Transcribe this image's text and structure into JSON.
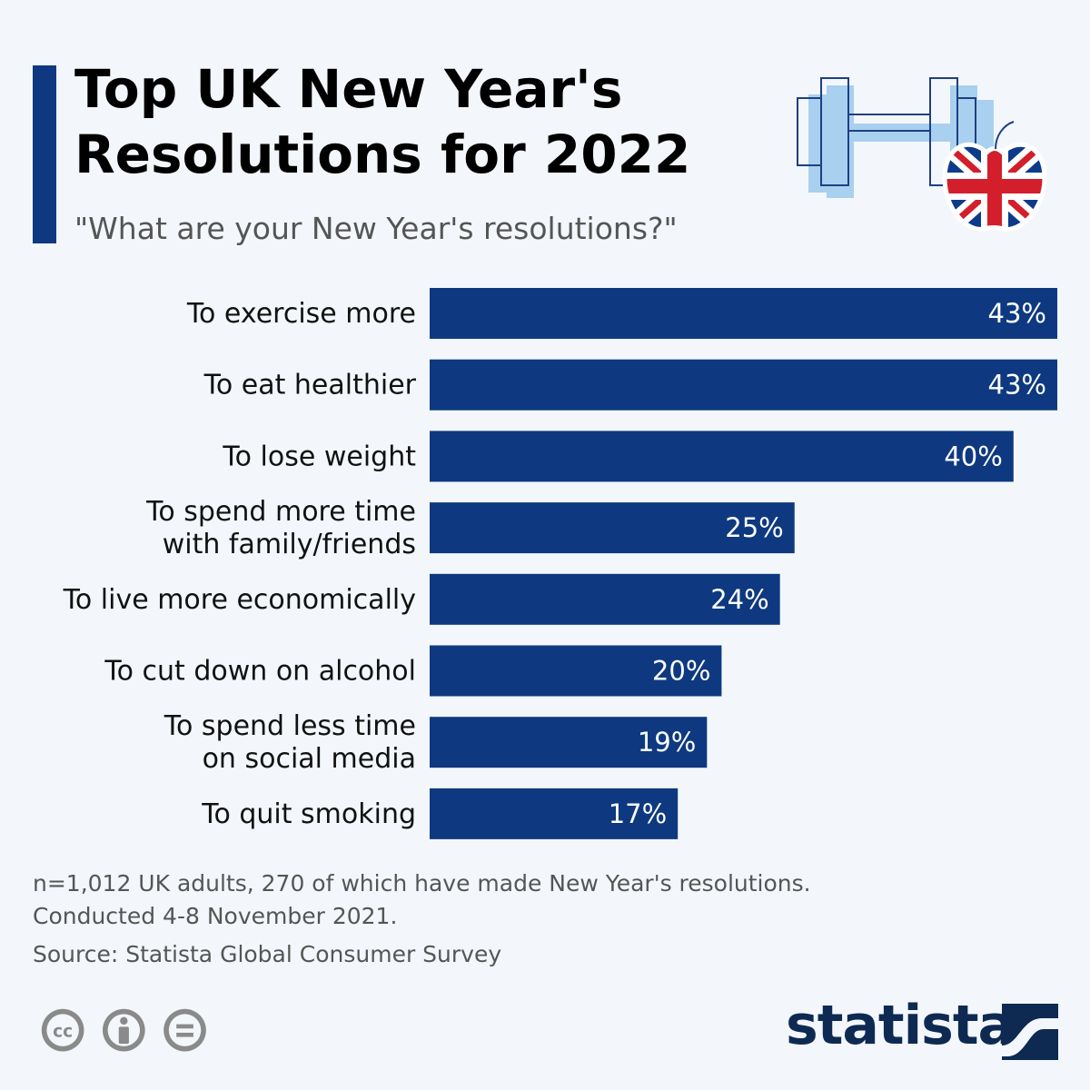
{
  "header": {
    "title": "Top UK New Year's Resolutions for 2022",
    "subtitle": "\"What are your New Year's resolutions?\""
  },
  "colors": {
    "bar": "#0e3980",
    "accent": "#0e3980",
    "background": "#f3f7fb",
    "flag_blue": "#0e3a8a",
    "flag_red": "#d21f2b"
  },
  "icons": [
    "dumbbell-icon",
    "uk-flag-apple-icon",
    "cc-icon",
    "attribution-icon",
    "no-derivatives-icon",
    "statista-logo-icon"
  ],
  "chart_data": {
    "type": "bar",
    "orientation": "horizontal",
    "categories": [
      "To exercise more",
      "To eat healthier",
      "To lose weight",
      "To spend more time with family/friends",
      "To live more economically",
      "To cut down on alcohol",
      "To spend less time on social media",
      "To quit smoking"
    ],
    "category_lines": [
      [
        "To exercise more"
      ],
      [
        "To eat healthier"
      ],
      [
        "To lose weight"
      ],
      [
        "To spend more time",
        "with family/friends"
      ],
      [
        "To live more economically"
      ],
      [
        "To cut down on alcohol"
      ],
      [
        "To spend less time",
        "on social media"
      ],
      [
        "To quit smoking"
      ]
    ],
    "values": [
      43,
      43,
      40,
      25,
      24,
      20,
      19,
      17
    ],
    "data_labels": [
      "43%",
      "43%",
      "40%",
      "25%",
      "24%",
      "20%",
      "19%",
      "17%"
    ],
    "unit": "%",
    "xlim": [
      0,
      43
    ],
    "grid": false
  },
  "footer": {
    "note_line1": "n=1,012 UK adults, 270 of which have made New Year's resolutions.",
    "note_line2": "Conducted 4-8 November 2021.",
    "source": "Source: Statista Global Consumer Survey",
    "logo": "statista"
  }
}
